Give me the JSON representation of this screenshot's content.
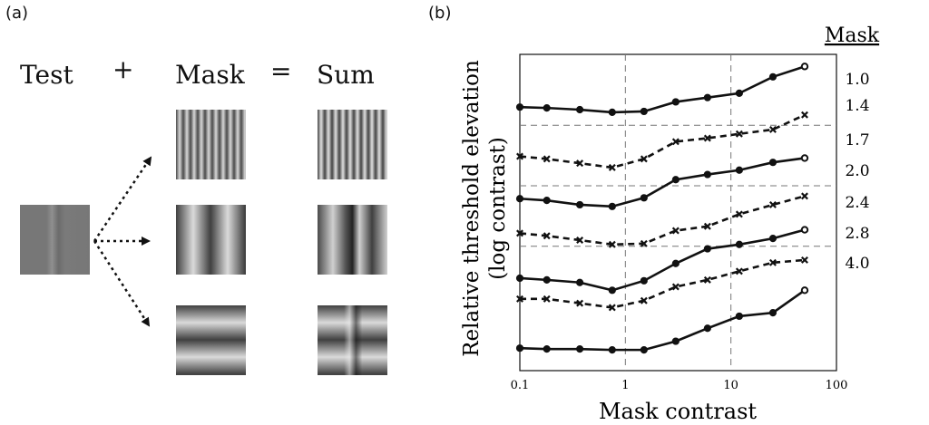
{
  "panel_a": {
    "label": "(a)",
    "test_label": "Test",
    "plus": "+",
    "mask_label": "Mask",
    "equals": "=",
    "sum_label": "Sum"
  },
  "panel_b": {
    "label": "(b)"
  },
  "chart_data": {
    "type": "line",
    "xlabel": "Mask contrast",
    "ylabel_line1": "Relative threshold elevation",
    "ylabel_line2": "(log contrast)",
    "x_scale": "log",
    "xlim": [
      0.1,
      100
    ],
    "xticks": [
      "0.1",
      "1",
      "10",
      "100"
    ],
    "grid": "dashed, at x = 1 and x = 10 and at each series baseline",
    "legend_title": "Mask",
    "x": [
      0.1,
      0.18,
      0.37,
      0.75,
      1.5,
      3,
      6,
      12,
      25,
      50
    ],
    "series": [
      {
        "name": "1.0",
        "style": "solid",
        "marker": "circle",
        "values": [
          0.81,
          0.8,
          0.78,
          0.75,
          0.76,
          0.87,
          0.92,
          0.97,
          1.16,
          1.28
        ]
      },
      {
        "name": "1.4",
        "style": "dashed",
        "marker": "cross",
        "values": [
          0.24,
          0.21,
          0.16,
          0.11,
          0.21,
          0.41,
          0.45,
          0.5,
          0.55,
          0.72
        ]
      },
      {
        "name": "1.7",
        "style": "solid",
        "marker": "circle",
        "values": [
          0.45,
          0.43,
          0.38,
          0.36,
          0.46,
          0.67,
          0.73,
          0.78,
          0.87,
          0.92
        ]
      },
      {
        "name": "2.0",
        "style": "dashed",
        "marker": "cross",
        "values": [
          0.05,
          0.02,
          -0.03,
          -0.08,
          -0.07,
          0.08,
          0.13,
          0.27,
          0.38,
          0.48
        ]
      },
      {
        "name": "2.4",
        "style": "solid",
        "marker": "circle",
        "values": [
          0.23,
          0.21,
          0.18,
          0.09,
          0.2,
          0.4,
          0.57,
          0.62,
          0.69,
          0.79
        ]
      },
      {
        "name": "2.8",
        "style": "dashed",
        "marker": "cross",
        "values": [
          -0.01,
          -0.01,
          -0.06,
          -0.11,
          -0.03,
          0.13,
          0.21,
          0.31,
          0.41,
          0.44
        ]
      },
      {
        "name": "4.0",
        "style": "solid",
        "marker": "circle",
        "values": [
          0.12,
          0.11,
          0.11,
          0.1,
          0.1,
          0.2,
          0.35,
          0.49,
          0.53,
          0.79
        ]
      }
    ]
  }
}
